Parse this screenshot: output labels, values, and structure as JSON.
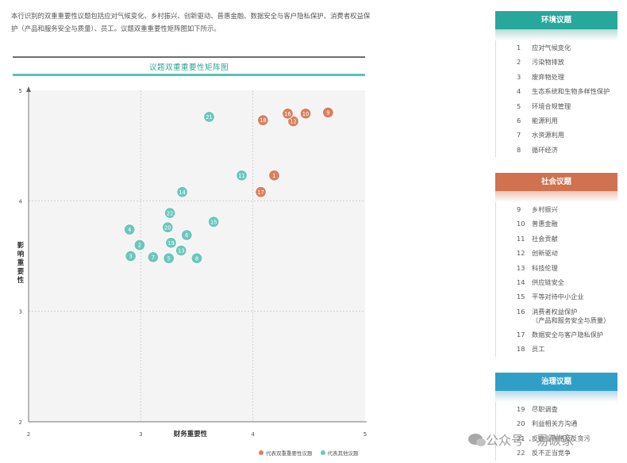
{
  "intro": "本行识别的双重重要性议题包括应对气候变化、乡村振兴、创新驱动、普惠金融、数据安全与客户隐私保护、消费者权益保护（产品和服务安全与质量）、员工。议题双重重要性矩阵图如下所示。",
  "chart_data": {
    "type": "scatter",
    "title": "议题双重重要性矩阵图",
    "xlabel": "财务重要性",
    "ylabel": "影响重要性",
    "xlim": [
      2,
      5
    ],
    "ylim": [
      2,
      5
    ],
    "x_ticks": [
      "2",
      "3",
      "4",
      "5"
    ],
    "y_ticks": [
      "2",
      "3",
      "4",
      "5"
    ],
    "grid": "dashed",
    "colors": {
      "double": "#d9805e",
      "other": "#6cc7bb"
    },
    "legend": [
      "代表双重重要性议题",
      "代表其他议题"
    ],
    "legend_position": "bottom-right",
    "series": [
      {
        "name": "代表双重重要性议题",
        "color": "#d9805e",
        "points": [
          {
            "id": "1",
            "x": 4.19,
            "y": 4.23
          },
          {
            "id": "9",
            "x": 4.67,
            "y": 4.8
          },
          {
            "id": "10",
            "x": 4.47,
            "y": 4.79
          },
          {
            "id": "12",
            "x": 4.36,
            "y": 4.72
          },
          {
            "id": "16",
            "x": 4.31,
            "y": 4.79
          },
          {
            "id": "17",
            "x": 4.07,
            "y": 4.08
          },
          {
            "id": "18",
            "x": 4.09,
            "y": 4.73
          }
        ]
      },
      {
        "name": "代表其他议题",
        "color": "#6cc7bb",
        "points": [
          {
            "id": "2",
            "x": 2.99,
            "y": 3.6
          },
          {
            "id": "3",
            "x": 2.91,
            "y": 3.5
          },
          {
            "id": "4",
            "x": 2.9,
            "y": 3.74
          },
          {
            "id": "5",
            "x": 3.25,
            "y": 3.48
          },
          {
            "id": "6",
            "x": 3.41,
            "y": 3.69
          },
          {
            "id": "7",
            "x": 3.11,
            "y": 3.49
          },
          {
            "id": "8",
            "x": 3.5,
            "y": 3.48
          },
          {
            "id": "11",
            "x": 3.9,
            "y": 4.23
          },
          {
            "id": "13",
            "x": 3.36,
            "y": 3.55
          },
          {
            "id": "14",
            "x": 3.37,
            "y": 4.08
          },
          {
            "id": "15",
            "x": 3.65,
            "y": 3.81
          },
          {
            "id": "19",
            "x": 3.27,
            "y": 3.62
          },
          {
            "id": "20",
            "x": 3.24,
            "y": 3.76
          },
          {
            "id": "21",
            "x": 3.61,
            "y": 4.76
          },
          {
            "id": "22",
            "x": 3.26,
            "y": 3.89
          }
        ]
      }
    ]
  },
  "panels": {
    "environment": {
      "title": "环境议题",
      "items": [
        {
          "num": "1",
          "label": "应对气候变化"
        },
        {
          "num": "2",
          "label": "污染物排放"
        },
        {
          "num": "3",
          "label": "废弃物处理"
        },
        {
          "num": "4",
          "label": "生态系统和生物多样性保护"
        },
        {
          "num": "5",
          "label": "环境合规管理"
        },
        {
          "num": "6",
          "label": "能源利用"
        },
        {
          "num": "7",
          "label": "水资源利用"
        },
        {
          "num": "8",
          "label": "循环经济"
        }
      ]
    },
    "social": {
      "title": "社会议题",
      "items": [
        {
          "num": "9",
          "label": "乡村振兴"
        },
        {
          "num": "10",
          "label": "普惠金融"
        },
        {
          "num": "11",
          "label": "社会贡献"
        },
        {
          "num": "12",
          "label": "创新驱动"
        },
        {
          "num": "13",
          "label": "科技伦理"
        },
        {
          "num": "14",
          "label": "供应链安全"
        },
        {
          "num": "15",
          "label": "平等对待中小企业"
        },
        {
          "num": "16",
          "label": "消费者权益保护",
          "label2": "（产品和服务安全与质量）"
        },
        {
          "num": "17",
          "label": "数据安全与客户隐私保护"
        },
        {
          "num": "18",
          "label": "员工"
        }
      ]
    },
    "governance": {
      "title": "治理议题",
      "items": [
        {
          "num": "19",
          "label": "尽职调查"
        },
        {
          "num": "20",
          "label": "利益相关方沟通"
        },
        {
          "num": "21",
          "label": "反商业贿赂及反贪污"
        },
        {
          "num": "22",
          "label": "反不正当竞争"
        }
      ]
    }
  },
  "watermark": "公众号 · 易碳家"
}
